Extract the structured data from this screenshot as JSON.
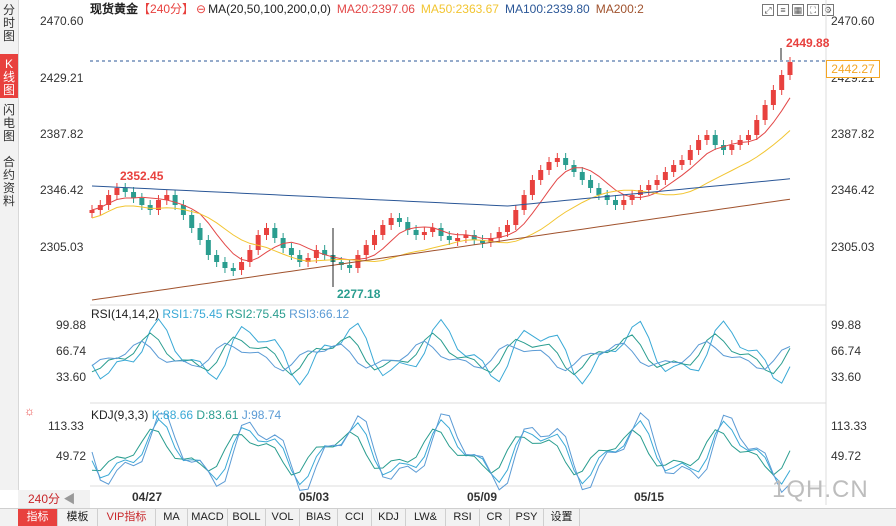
{
  "left_tabs": [
    {
      "label": "分时图",
      "active": false
    },
    {
      "label": "K线图",
      "active": true
    },
    {
      "label": "闪电图",
      "active": false
    },
    {
      "label": "合约资料",
      "active": false
    }
  ],
  "header": {
    "name": "现货黄金",
    "period": "【240分】",
    "ma_label": "MA(20,50,100,200,0,0)",
    "ma20": "MA20:2397.06",
    "ma50": "MA50:2363.67",
    "ma100": "MA100:2339.80",
    "ma200": "MA200:2"
  },
  "colors": {
    "up": "#e8413e",
    "down": "#2a9d8f",
    "ma20": "#e34848",
    "ma50": "#f2c531",
    "ma100": "#2b5797",
    "ma200": "#a0522d",
    "rsi1": "#3aa9d6",
    "rsi2": "#2a9d8f",
    "rsi3": "#5b9bd5",
    "kdj_k": "#3aa9d6",
    "kdj_d": "#2a9d8f",
    "kdj_j": "#5b9bd5",
    "ref": "#2b5797"
  },
  "price_axis": [
    "2470.60",
    "2429.21",
    "2387.82",
    "2346.42",
    "2305.03"
  ],
  "current_price": "2442.27",
  "high_label": "2449.88",
  "low_label": "2277.18",
  "left_high_label": "2352.45",
  "rsi": {
    "title": "RSI(14,14,2)",
    "rsi1": "RSI1:75.45",
    "rsi2": "RSI2:75.45",
    "rsi3": "RSI3:66.12",
    "axis": [
      "99.88",
      "66.74",
      "33.60"
    ]
  },
  "kdj": {
    "title": "KDJ(9,3,3)",
    "k": "K:88.66",
    "d": "D:83.61",
    "j": "J:98.74",
    "axis": [
      "113.33",
      "49.72"
    ]
  },
  "dates": [
    "04/27",
    "05/03",
    "05/09",
    "05/15"
  ],
  "period_selector": "240分",
  "bottom_tabs": [
    "指标",
    "模板",
    "VIP指标",
    "MA",
    "MACD",
    "BOLL",
    "VOL",
    "BIAS",
    "CCI",
    "KDJ",
    "LW&",
    "RSI",
    "CR",
    "PSY",
    "设置"
  ],
  "watermark": "1QH.CN",
  "icons": [
    "expand-icon",
    "menu-icon",
    "grid-icon",
    "fullscreen-icon",
    "settings-icon"
  ]
}
